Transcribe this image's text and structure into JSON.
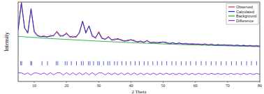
{
  "chart_data": {
    "type": "line",
    "x_label": "2 Theta",
    "y_label": "Intensity",
    "xlim": [
      5,
      80
    ],
    "xticks": [
      10,
      20,
      30,
      40,
      50,
      60,
      70,
      80
    ],
    "ylim": [
      -1100,
      2600
    ],
    "tick_labels": "x",
    "legend": "upper right",
    "grid": false,
    "x": [
      5,
      6,
      7,
      8,
      9,
      10,
      11,
      12,
      13,
      14,
      15,
      16,
      17,
      18,
      19,
      20,
      21,
      22,
      23,
      24,
      25,
      26,
      27,
      28,
      29,
      30,
      31,
      32,
      33,
      34,
      35,
      36,
      37,
      38,
      39,
      40,
      41,
      42,
      43,
      44,
      45,
      46,
      47,
      48,
      49,
      50,
      51,
      52,
      53,
      54,
      55,
      56,
      57,
      58,
      59,
      60,
      61,
      62,
      63,
      64,
      65,
      66,
      67,
      68,
      69,
      70,
      71,
      72,
      73,
      74,
      75,
      76,
      77,
      78,
      79,
      80
    ],
    "series": [
      {
        "name": "Observed",
        "color": "#e8262b",
        "values": [
          1350,
          2600,
          1380,
          1200,
          2250,
          1250,
          1060,
          980,
          1040,
          950,
          1060,
          1010,
          1250,
          1060,
          1000,
          1180,
          960,
          1020,
          950,
          1210,
          1680,
          1210,
          1460,
          1060,
          900,
          1230,
          950,
          840,
          1010,
          810,
          890,
          860,
          860,
          760,
          840,
          820,
          830,
          720,
          800,
          700,
          830,
          690,
          750,
          680,
          740,
          720,
          730,
          650,
          720,
          640,
          710,
          630,
          690,
          620,
          670,
          620,
          660,
          600,
          660,
          590,
          650,
          580,
          630,
          580,
          620,
          570,
          610,
          560,
          610,
          550,
          600,
          540,
          590,
          530,
          580,
          530
        ]
      },
      {
        "name": "Calculated",
        "color": "#1a2ad6",
        "values": [
          1300,
          2550,
          1400,
          1150,
          2300,
          1200,
          1020,
          1000,
          990,
          990,
          1000,
          1050,
          1200,
          1000,
          1050,
          1120,
          1000,
          960,
          1000,
          1150,
          1720,
          1150,
          1500,
          1000,
          950,
          1180,
          900,
          880,
          960,
          850,
          840,
          900,
          810,
          800,
          790,
          860,
          780,
          760,
          760,
          740,
          790,
          720,
          710,
          720,
          700,
          750,
          690,
          680,
          690,
          670,
          680,
          660,
          650,
          655,
          640,
          650,
          630,
          625,
          630,
          615,
          620,
          605,
          600,
          605,
          595,
          600,
          585,
          580,
          585,
          575,
          570,
          565,
          565,
          558,
          555,
          550
        ]
      },
      {
        "name": "Background",
        "color": "#22a83a",
        "values": [
          1000,
          990,
          980,
          970,
          960,
          950,
          940,
          930,
          920,
          910,
          900,
          892,
          884,
          876,
          868,
          860,
          852,
          844,
          836,
          828,
          820,
          812,
          804,
          796,
          788,
          780,
          773,
          766,
          759,
          752,
          745,
          738,
          731,
          724,
          717,
          710,
          704,
          698,
          692,
          686,
          680,
          674,
          668,
          662,
          656,
          650,
          645,
          640,
          635,
          630,
          625,
          620,
          615,
          610,
          605,
          600,
          596,
          592,
          588,
          584,
          580,
          576,
          572,
          568,
          564,
          560,
          556,
          552,
          548,
          544,
          540,
          536,
          532,
          528,
          524,
          520
        ]
      },
      {
        "name": "Difference",
        "color": "#8a2be2",
        "values": [
          -700,
          -700,
          -770,
          -700,
          -800,
          -700,
          -710,
          -770,
          -700,
          -790,
          -690,
          -790,
          -700,
          -690,
          -800,
          -690,
          -790,
          -690,
          -800,
          -690,
          -790,
          -690,
          -790,
          -690,
          -800,
          -700,
          -700,
          -790,
          -700,
          -790,
          -700,
          -790,
          -700,
          -790,
          -700,
          -790,
          -700,
          -790,
          -710,
          -790,
          -710,
          -780,
          -710,
          -790,
          -710,
          -780,
          -710,
          -780,
          -720,
          -780,
          -720,
          -780,
          -710,
          -785,
          -720,
          -780,
          -720,
          -775,
          -720,
          -775,
          -720,
          -775,
          -720,
          -775,
          -725,
          -780,
          -725,
          -770,
          -725,
          -775,
          -720,
          -775,
          -725,
          -778,
          -725,
          -770
        ]
      }
    ],
    "reflection_positions": [
      5.8,
      6.1,
      8.9,
      9.2,
      12.4,
      14.1,
      16.8,
      17.3,
      19.6,
      20.2,
      21.5,
      23.1,
      24.6,
      25.2,
      26.8,
      27.3,
      28.4,
      29.7,
      30.2,
      31.5,
      32.8,
      33.4,
      34.9,
      35.8,
      37.2,
      38.5,
      39.9,
      41.3,
      42.6,
      44.1,
      45.3,
      46.8,
      48.2,
      49.6,
      51.1,
      52.7,
      54.0,
      55.6,
      57.1,
      58.5,
      60.2,
      61.8,
      63.3,
      64.9,
      66.4,
      68.0,
      69.6,
      71.2,
      72.7,
      74.3,
      75.9,
      77.4,
      79.0
    ],
    "reflection_level": -250,
    "reflection_color": "#3040c0"
  }
}
